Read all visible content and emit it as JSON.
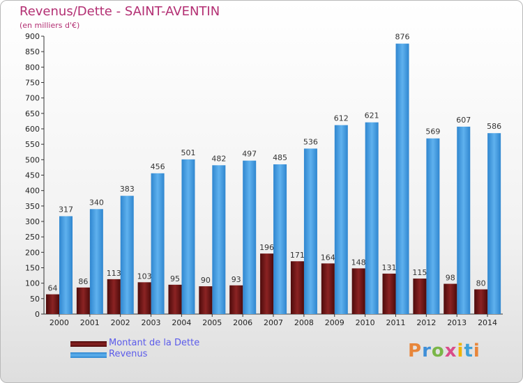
{
  "title": "Revenus/Dette - SAINT-AVENTIN",
  "subtitle": "(en milliers d'€)",
  "brand": "Proxiti",
  "colors": {
    "title": "#b32f73",
    "legend_text": "#5b5bea",
    "debt": "#7a1a1a",
    "revenue": "#4a9fe0"
  },
  "chart_data": {
    "type": "bar",
    "title": "Revenus/Dette - SAINT-AVENTIN",
    "subtitle": "(en milliers d'€)",
    "categories": [
      "2000",
      "2001",
      "2002",
      "2003",
      "2004",
      "2005",
      "2006",
      "2007",
      "2008",
      "2009",
      "2010",
      "2011",
      "2012",
      "2013",
      "2014"
    ],
    "series": [
      {
        "name": "Montant de la Dette",
        "values": [
          64,
          86,
          113,
          103,
          95,
          90,
          93,
          196,
          171,
          164,
          148,
          131,
          115,
          98,
          80
        ]
      },
      {
        "name": "Revenus",
        "values": [
          317,
          340,
          383,
          456,
          501,
          482,
          497,
          485,
          536,
          612,
          621,
          876,
          569,
          607,
          586
        ]
      }
    ],
    "ylim": [
      0,
      900
    ],
    "yticks": [
      0,
      50,
      100,
      150,
      200,
      250,
      300,
      350,
      400,
      450,
      500,
      550,
      600,
      650,
      700,
      750,
      800,
      850,
      900
    ],
    "grid": false,
    "legend_position": "bottom-left"
  },
  "legend": {
    "items": [
      {
        "label": "Montant de la Dette"
      },
      {
        "label": "Revenus"
      }
    ]
  }
}
